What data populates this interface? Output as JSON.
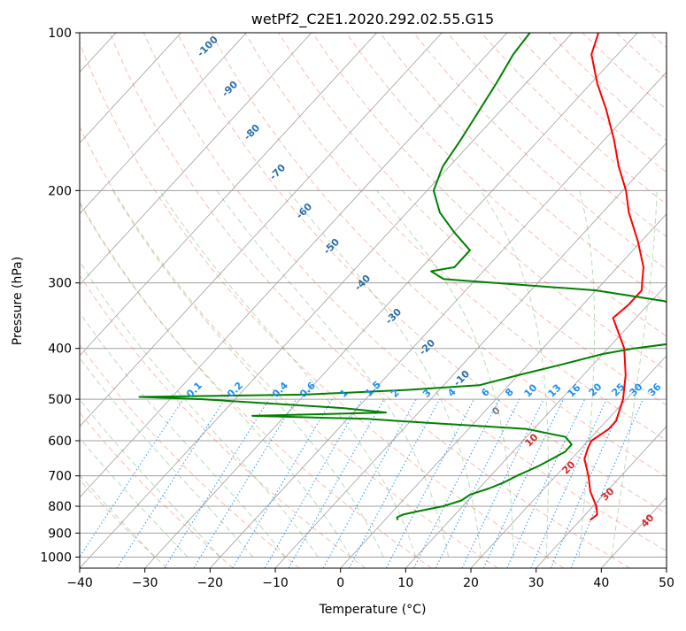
{
  "chart_data": {
    "type": "line",
    "title": "wetPf2_C2E1.2020.292.02.55.G15",
    "xlabel": "Temperature (°C)",
    "ylabel": "Pressure (hPa)",
    "xlim": [
      -40,
      50
    ],
    "ylim": [
      1050,
      100
    ],
    "y_scale": "log",
    "skew": true,
    "grid": true,
    "x_ticks": [
      "−40",
      "−30",
      "−20",
      "−10",
      "0",
      "10",
      "20",
      "30",
      "40",
      "50"
    ],
    "y_ticks": [
      "100",
      "200",
      "300",
      "400",
      "500",
      "600",
      "700",
      "800",
      "900",
      "1000"
    ],
    "colors": {
      "temperature": "#ff0000",
      "dewpoint": "#008000",
      "dry_adiabat": "#f07050",
      "moist_adiabat": "#3a9a3a",
      "mixing_ratio": "#1f8ef1",
      "grid": "#a0a0a0"
    },
    "series": [
      {
        "name": "",
        "role": "temperature",
        "points": [
          [
            31.5,
            850
          ],
          [
            31.8,
            830
          ],
          [
            30.5,
            800
          ],
          [
            27.5,
            750
          ],
          [
            25,
            700
          ],
          [
            22,
            650
          ],
          [
            21,
            620
          ],
          [
            20.5,
            600
          ],
          [
            21.5,
            570
          ],
          [
            21.5,
            550
          ],
          [
            19.5,
            500
          ],
          [
            16.5,
            450
          ],
          [
            12.5,
            400
          ],
          [
            9,
            370
          ],
          [
            6.5,
            350
          ],
          [
            7,
            330
          ],
          [
            7,
            310
          ],
          [
            6,
            300
          ],
          [
            4,
            280
          ],
          [
            -0.5,
            250
          ],
          [
            -6,
            220
          ],
          [
            -9.5,
            200
          ],
          [
            -14,
            180
          ],
          [
            -18.5,
            160
          ],
          [
            -24,
            140
          ],
          [
            -29,
            125
          ],
          [
            -34,
            110
          ],
          [
            -36,
            100
          ]
        ]
      },
      {
        "name": "",
        "role": "dewpoint",
        "points": [
          [
            2,
            850
          ],
          [
            1.5,
            840
          ],
          [
            2,
            830
          ],
          [
            3.5,
            820
          ],
          [
            7,
            800
          ],
          [
            9,
            780
          ],
          [
            9.5,
            760
          ],
          [
            11.5,
            740
          ],
          [
            13,
            720
          ],
          [
            14,
            700
          ],
          [
            16,
            670
          ],
          [
            17,
            650
          ],
          [
            18,
            630
          ],
          [
            18,
            610
          ],
          [
            16,
            590
          ],
          [
            9,
            570
          ],
          [
            -12,
            550
          ],
          [
            -17,
            545
          ],
          [
            -35,
            538
          ],
          [
            -15,
            530
          ],
          [
            -22,
            520
          ],
          [
            -45,
            500
          ],
          [
            -55,
            495
          ],
          [
            -30,
            490
          ],
          [
            -15,
            480
          ],
          [
            -4.5,
            470
          ],
          [
            0,
            450
          ],
          [
            5,
            430
          ],
          [
            10,
            410
          ],
          [
            14,
            400
          ],
          [
            20,
            390
          ],
          [
            21,
            370
          ],
          [
            20,
            350
          ],
          [
            17.5,
            340
          ],
          [
            12,
            325
          ],
          [
            0,
            310
          ],
          [
            -25,
            295
          ],
          [
            -28,
            285
          ],
          [
            -25,
            280
          ],
          [
            -25,
            260
          ],
          [
            -30,
            240
          ],
          [
            -35,
            220
          ],
          [
            -39,
            200
          ],
          [
            -41,
            180
          ],
          [
            -42,
            160
          ],
          [
            -43,
            145
          ],
          [
            -44.5,
            125
          ],
          [
            -46,
            110
          ],
          [
            -46.5,
            100
          ]
        ]
      }
    ],
    "dry_adiabat_labels": [
      "-100",
      "-90",
      "-80",
      "-70",
      "-60",
      "-50",
      "-40",
      "-30",
      "-20",
      "-10"
    ],
    "moist_adiabat_labels": [
      "0",
      "10",
      "20",
      "30",
      "40"
    ],
    "mixing_ratio_labels": [
      "0.1",
      "0.2",
      "0.4",
      "0.6",
      "1",
      "1.5",
      "2",
      "3",
      "4",
      "6",
      "8",
      "10",
      "13",
      "16",
      "20",
      "25",
      "30",
      "36"
    ],
    "mixing_ratio_values": [
      0.1,
      0.2,
      0.4,
      0.6,
      1,
      1.5,
      2,
      3,
      4,
      6,
      8,
      10,
      13,
      16,
      20,
      25,
      30,
      36
    ]
  }
}
